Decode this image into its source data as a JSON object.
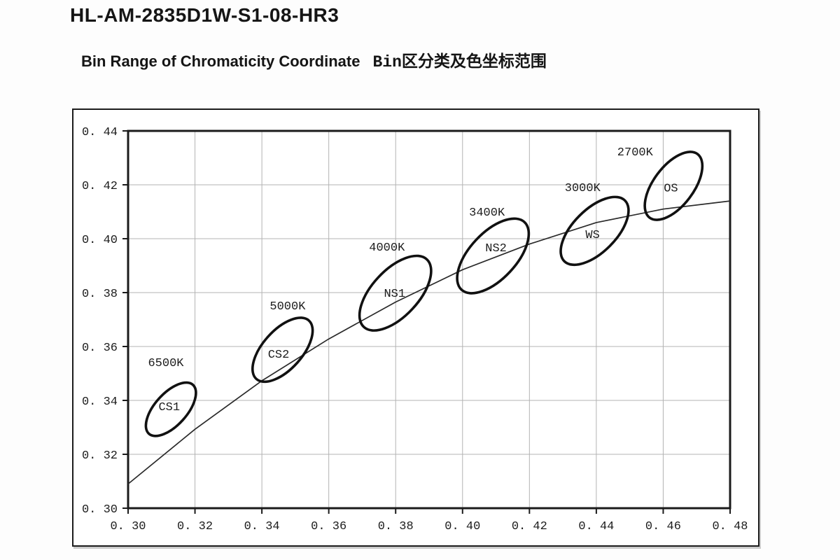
{
  "page": {
    "title": "HL-AM-2835D1W-S1-08-HR3",
    "subtitle_en": "Bin Range of Chromaticity Coordinate",
    "subtitle_zh": "Bin区分类及色坐标范围"
  },
  "chart_data": {
    "type": "scatter",
    "title": "Bin Range of Chromaticity Coordinate",
    "xlabel": "",
    "ylabel": "",
    "xlim": [
      0.3,
      0.48
    ],
    "ylim": [
      0.3,
      0.44
    ],
    "grid": true,
    "legend": "none",
    "x_ticks": [
      0.3,
      0.32,
      0.34,
      0.36,
      0.38,
      0.4,
      0.42,
      0.44,
      0.46,
      0.48
    ],
    "x_tick_labels": [
      "0. 30",
      "0. 32",
      "0. 34",
      "0. 36",
      "0. 38",
      "0. 40",
      "0. 42",
      "0. 44",
      "0. 46",
      "0. 48"
    ],
    "y_ticks": [
      0.3,
      0.32,
      0.34,
      0.36,
      0.38,
      0.4,
      0.42,
      0.44
    ],
    "y_tick_labels": [
      "0. 30",
      "0. 32",
      "0. 34",
      "0. 36",
      "0. 38",
      "0. 40",
      "0. 42",
      "0. 44"
    ],
    "colors": {
      "grid": "#b3b3b3",
      "axis": "#1b1b1b",
      "curve": "#2a2a2a",
      "ellipse": "#111111",
      "text": "#1c1c1c",
      "background": "#ffffff"
    },
    "locus_curve": {
      "name": "planckian-locus",
      "points": [
        [
          0.3,
          0.309
        ],
        [
          0.32,
          0.3293
        ],
        [
          0.34,
          0.3473
        ],
        [
          0.36,
          0.3628
        ],
        [
          0.38,
          0.3765
        ],
        [
          0.4,
          0.3885
        ],
        [
          0.42,
          0.398
        ],
        [
          0.44,
          0.406
        ],
        [
          0.46,
          0.411
        ],
        [
          0.48,
          0.414
        ]
      ]
    },
    "bins": [
      {
        "bin": "CS1",
        "cct": "6500K",
        "center": [
          0.3128,
          0.3367
        ],
        "semi_minor": 0.0053,
        "semi_major": 0.0109,
        "tilt_deg": 42,
        "bin_label_pos": [
          0.3123,
          0.3379
        ],
        "cct_label_pos": [
          0.3113,
          0.3543
        ]
      },
      {
        "bin": "CS2",
        "cct": "5000K",
        "center": [
          0.3462,
          0.3588
        ],
        "semi_minor": 0.0065,
        "semi_major": 0.013,
        "tilt_deg": 42,
        "bin_label_pos": [
          0.345,
          0.3574
        ],
        "cct_label_pos": [
          0.3477,
          0.3753
        ]
      },
      {
        "bin": "NS1",
        "cct": "4000K",
        "center": [
          0.3799,
          0.3798
        ],
        "semi_minor": 0.0077,
        "semi_major": 0.0153,
        "tilt_deg": 43,
        "bin_label_pos": [
          0.3797,
          0.38
        ],
        "cct_label_pos": [
          0.3774,
          0.3971
        ]
      },
      {
        "bin": "NS2",
        "cct": "3400K",
        "center": [
          0.4091,
          0.3936
        ],
        "semi_minor": 0.0077,
        "semi_major": 0.0153,
        "tilt_deg": 43,
        "bin_label_pos": [
          0.41,
          0.3969
        ],
        "cct_label_pos": [
          0.4073,
          0.4101
        ]
      },
      {
        "bin": "WS",
        "cct": "3000K",
        "center": [
          0.4395,
          0.4029
        ],
        "semi_minor": 0.0071,
        "semi_major": 0.0142,
        "tilt_deg": 45,
        "bin_label_pos": [
          0.4389,
          0.4018
        ],
        "cct_label_pos": [
          0.4359,
          0.4192
        ]
      },
      {
        "bin": "OS",
        "cct": "2700K",
        "center": [
          0.4631,
          0.4196
        ],
        "semi_minor": 0.0066,
        "semi_major": 0.0132,
        "tilt_deg": 37,
        "bin_label_pos": [
          0.4623,
          0.4191
        ],
        "cct_label_pos": [
          0.4516,
          0.4325
        ]
      }
    ]
  }
}
